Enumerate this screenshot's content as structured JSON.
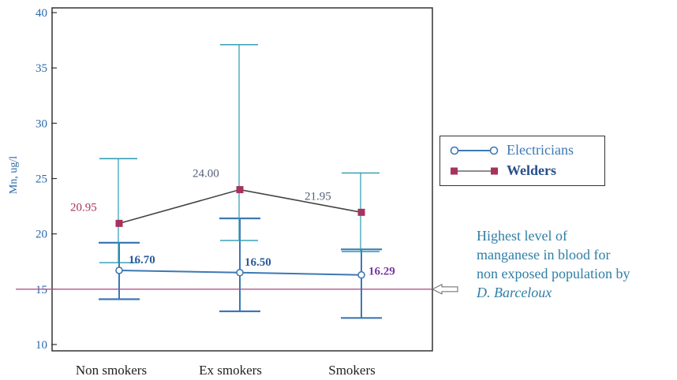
{
  "chart_data": {
    "type": "line",
    "ylabel": "Mn, ug/l",
    "ylim": [
      10,
      40
    ],
    "yticks": [
      10,
      15,
      20,
      25,
      30,
      35,
      40
    ],
    "categories": [
      "Non smokers",
      "Ex smokers",
      "Smokers"
    ],
    "reference_line": 15,
    "series": [
      {
        "name": "Electricians",
        "color": "#3d78b5",
        "marker": "open-circle",
        "values": [
          16.7,
          16.5,
          16.29
        ],
        "value_labels": [
          "16.70",
          "16.50",
          "16.29"
        ],
        "error_low": [
          14.1,
          13.0,
          12.4
        ],
        "error_high": [
          19.2,
          21.4,
          18.6
        ],
        "error_inner_low": [
          14.1,
          13.0,
          12.4
        ],
        "error_inner_high": [
          19.2,
          21.4,
          18.6
        ]
      },
      {
        "name": "Welders",
        "color": "#a8325e",
        "marker": "filled-square",
        "values": [
          20.95,
          24.0,
          21.95
        ],
        "value_labels": [
          "20.95",
          "24.00",
          "21.95"
        ],
        "error_low": [
          17.4,
          19.4,
          18.4
        ],
        "error_high": [
          26.8,
          37.1,
          25.5
        ]
      }
    ],
    "legend_position": "right"
  },
  "annotation": {
    "lines": [
      "Highest level of",
      "manganese in blood for",
      "non exposed population by"
    ],
    "author": "D. Barceloux"
  }
}
